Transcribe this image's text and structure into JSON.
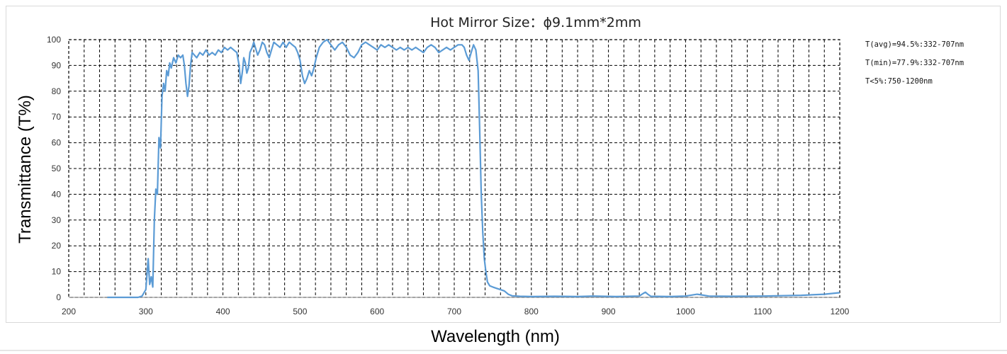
{
  "chart_data": {
    "type": "line",
    "title": "Hot Mirror  Size：ϕ9.1mm*2mm",
    "xlabel": "Wavelength (nm)",
    "ylabel": "Transmittance (T%)",
    "xlim": [
      200,
      1200
    ],
    "ylim": [
      0,
      100
    ],
    "x_ticks": [
      200,
      300,
      400,
      500,
      600,
      700,
      800,
      900,
      1000,
      1100,
      1200
    ],
    "y_ticks": [
      0,
      10,
      20,
      30,
      40,
      50,
      60,
      70,
      80,
      90,
      100
    ],
    "grid": "dashed",
    "line_color": "#5b9bd5",
    "annotations": [
      "T(avg)=94.5%:332-707nm",
      "T(min)=77.9%:332-707nm",
      "T<5%:750-1200nm"
    ],
    "series": [
      {
        "points": [
          [
            250,
            0
          ],
          [
            290,
            0
          ],
          [
            295,
            0.5
          ],
          [
            300,
            3
          ],
          [
            303,
            15
          ],
          [
            305,
            5
          ],
          [
            307,
            8
          ],
          [
            309,
            4
          ],
          [
            311,
            30
          ],
          [
            313,
            42
          ],
          [
            315,
            40
          ],
          [
            317,
            62
          ],
          [
            319,
            58
          ],
          [
            321,
            78
          ],
          [
            323,
            83
          ],
          [
            325,
            80
          ],
          [
            327,
            88
          ],
          [
            329,
            86
          ],
          [
            331,
            91
          ],
          [
            333,
            89
          ],
          [
            336,
            93
          ],
          [
            339,
            91
          ],
          [
            342,
            94
          ],
          [
            345,
            93
          ],
          [
            348,
            94
          ],
          [
            350,
            90
          ],
          [
            352,
            83
          ],
          [
            354,
            78
          ],
          [
            356,
            82
          ],
          [
            358,
            90
          ],
          [
            360,
            95
          ],
          [
            363,
            94
          ],
          [
            366,
            93
          ],
          [
            370,
            95
          ],
          [
            374,
            94
          ],
          [
            378,
            96
          ],
          [
            382,
            94
          ],
          [
            386,
            95
          ],
          [
            390,
            94
          ],
          [
            394,
            96
          ],
          [
            398,
            95
          ],
          [
            402,
            97
          ],
          [
            406,
            96
          ],
          [
            410,
            97
          ],
          [
            414,
            96
          ],
          [
            418,
            95
          ],
          [
            421,
            90
          ],
          [
            423,
            83
          ],
          [
            425,
            87
          ],
          [
            427,
            93
          ],
          [
            429,
            91
          ],
          [
            431,
            87
          ],
          [
            433,
            89
          ],
          [
            435,
            95
          ],
          [
            438,
            97
          ],
          [
            440,
            99
          ],
          [
            442,
            97
          ],
          [
            445,
            94
          ],
          [
            448,
            96
          ],
          [
            451,
            99
          ],
          [
            454,
            98
          ],
          [
            457,
            95
          ],
          [
            460,
            93
          ],
          [
            463,
            96
          ],
          [
            466,
            99
          ],
          [
            470,
            98
          ],
          [
            474,
            97
          ],
          [
            478,
            99
          ],
          [
            482,
            97
          ],
          [
            486,
            99
          ],
          [
            490,
            98
          ],
          [
            494,
            97
          ],
          [
            497,
            95
          ],
          [
            500,
            92
          ],
          [
            503,
            86
          ],
          [
            506,
            83
          ],
          [
            509,
            85
          ],
          [
            512,
            88
          ],
          [
            515,
            86
          ],
          [
            518,
            89
          ],
          [
            521,
            93
          ],
          [
            525,
            97
          ],
          [
            530,
            99
          ],
          [
            535,
            100
          ],
          [
            540,
            98
          ],
          [
            545,
            96
          ],
          [
            550,
            98
          ],
          [
            555,
            99
          ],
          [
            560,
            97
          ],
          [
            565,
            94
          ],
          [
            570,
            93
          ],
          [
            575,
            95
          ],
          [
            580,
            98
          ],
          [
            585,
            99
          ],
          [
            590,
            98
          ],
          [
            595,
            97
          ],
          [
            600,
            96
          ],
          [
            605,
            98
          ],
          [
            610,
            97
          ],
          [
            615,
            98
          ],
          [
            620,
            97
          ],
          [
            625,
            96
          ],
          [
            630,
            97
          ],
          [
            635,
            96
          ],
          [
            640,
            97
          ],
          [
            645,
            96
          ],
          [
            650,
            97
          ],
          [
            655,
            96
          ],
          [
            660,
            95
          ],
          [
            665,
            97
          ],
          [
            670,
            98
          ],
          [
            675,
            97
          ],
          [
            680,
            95
          ],
          [
            685,
            96
          ],
          [
            690,
            97
          ],
          [
            695,
            96
          ],
          [
            700,
            97
          ],
          [
            705,
            98
          ],
          [
            710,
            98
          ],
          [
            713,
            97
          ],
          [
            716,
            94
          ],
          [
            719,
            92
          ],
          [
            722,
            95
          ],
          [
            725,
            98
          ],
          [
            728,
            96
          ],
          [
            731,
            88
          ],
          [
            733,
            65
          ],
          [
            735,
            40
          ],
          [
            737,
            25
          ],
          [
            739,
            15
          ],
          [
            741,
            10
          ],
          [
            743,
            6
          ],
          [
            746,
            4.5
          ],
          [
            750,
            4
          ],
          [
            755,
            3.5
          ],
          [
            760,
            3
          ],
          [
            765,
            2.5
          ],
          [
            770,
            1.2
          ],
          [
            775,
            0.6
          ],
          [
            785,
            0.4
          ],
          [
            800,
            0.3
          ],
          [
            830,
            0.4
          ],
          [
            860,
            0.3
          ],
          [
            880,
            0.5
          ],
          [
            910,
            0.3
          ],
          [
            940,
            0.5
          ],
          [
            945,
            1.5
          ],
          [
            948,
            2
          ],
          [
            951,
            1.2
          ],
          [
            955,
            0.4
          ],
          [
            980,
            0.3
          ],
          [
            1000,
            0.5
          ],
          [
            1015,
            1.2
          ],
          [
            1020,
            1
          ],
          [
            1030,
            0.5
          ],
          [
            1060,
            0.4
          ],
          [
            1100,
            0.5
          ],
          [
            1150,
            0.8
          ],
          [
            1180,
            1.2
          ],
          [
            1200,
            1.8
          ]
        ]
      }
    ]
  }
}
